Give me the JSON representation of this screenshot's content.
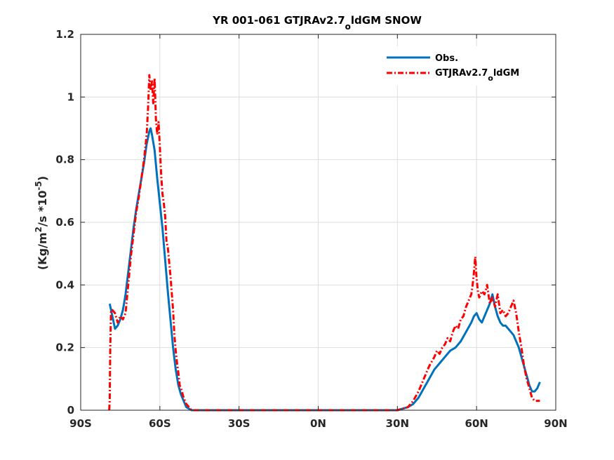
{
  "chart_data": {
    "type": "line",
    "title": "YR 001-061 GTJRAv2.7",
    "title_sub": "o",
    "title_rest": "ldGM SNOW",
    "ylabel_pre": "(Kg/m",
    "ylabel_sup1": "2",
    "ylabel_mid": "/s *10",
    "ylabel_sup2": "-5",
    "ylabel_post": ")",
    "xlim": [
      -90,
      90
    ],
    "ylim": [
      0,
      1.2
    ],
    "xticks": [
      -90,
      -60,
      -30,
      0,
      30,
      60,
      90
    ],
    "xtick_labels": [
      "90S",
      "60S",
      "30S",
      "0N",
      "30N",
      "60N",
      "90N"
    ],
    "yticks": [
      0,
      0.2,
      0.4,
      0.6,
      0.8,
      1.0,
      1.2
    ],
    "ytick_labels": [
      "0",
      "0.2",
      "0.4",
      "0.6",
      "0.8",
      "1",
      "1.2"
    ],
    "grid": true,
    "legend_position": "top-right",
    "series": [
      {
        "name": "Obs.",
        "color": "#0072BD",
        "style": "solid",
        "points": [
          [
            -79,
            0.34
          ],
          [
            -78,
            0.3
          ],
          [
            -77,
            0.26
          ],
          [
            -76,
            0.27
          ],
          [
            -75,
            0.29
          ],
          [
            -74,
            0.32
          ],
          [
            -73,
            0.37
          ],
          [
            -72,
            0.44
          ],
          [
            -71,
            0.51
          ],
          [
            -70,
            0.58
          ],
          [
            -69,
            0.64
          ],
          [
            -68,
            0.69
          ],
          [
            -67,
            0.74
          ],
          [
            -66,
            0.79
          ],
          [
            -65,
            0.85
          ],
          [
            -64,
            0.89
          ],
          [
            -63.5,
            0.9
          ],
          [
            -63,
            0.88
          ],
          [
            -62,
            0.83
          ],
          [
            -61,
            0.74
          ],
          [
            -60,
            0.66
          ],
          [
            -59,
            0.58
          ],
          [
            -58,
            0.48
          ],
          [
            -57,
            0.38
          ],
          [
            -56,
            0.29
          ],
          [
            -55,
            0.2
          ],
          [
            -54,
            0.13
          ],
          [
            -53,
            0.08
          ],
          [
            -52,
            0.05
          ],
          [
            -51,
            0.03
          ],
          [
            -50,
            0.01
          ],
          [
            -49,
            0.005
          ],
          [
            -48,
            0.0
          ],
          [
            -40,
            0.0
          ],
          [
            -20,
            0.0
          ],
          [
            0,
            0.0
          ],
          [
            20,
            0.0
          ],
          [
            30,
            0.0
          ],
          [
            32,
            0.005
          ],
          [
            34,
            0.01
          ],
          [
            36,
            0.02
          ],
          [
            38,
            0.04
          ],
          [
            40,
            0.07
          ],
          [
            42,
            0.1
          ],
          [
            44,
            0.13
          ],
          [
            46,
            0.15
          ],
          [
            48,
            0.17
          ],
          [
            50,
            0.19
          ],
          [
            52,
            0.2
          ],
          [
            54,
            0.22
          ],
          [
            56,
            0.25
          ],
          [
            58,
            0.28
          ],
          [
            59,
            0.3
          ],
          [
            60,
            0.31
          ],
          [
            61,
            0.29
          ],
          [
            62,
            0.28
          ],
          [
            63,
            0.3
          ],
          [
            64,
            0.32
          ],
          [
            65,
            0.34
          ],
          [
            66,
            0.37
          ],
          [
            67,
            0.33
          ],
          [
            68,
            0.3
          ],
          [
            69,
            0.28
          ],
          [
            70,
            0.27
          ],
          [
            71,
            0.27
          ],
          [
            72,
            0.26
          ],
          [
            73,
            0.25
          ],
          [
            74,
            0.24
          ],
          [
            75,
            0.22
          ],
          [
            76,
            0.2
          ],
          [
            77,
            0.17
          ],
          [
            78,
            0.14
          ],
          [
            79,
            0.11
          ],
          [
            80,
            0.08
          ],
          [
            81,
            0.06
          ],
          [
            82,
            0.06
          ],
          [
            83,
            0.07
          ],
          [
            84,
            0.09
          ]
        ]
      },
      {
        "name": "GTJRAv2.7",
        "name_sub": "o",
        "name_rest": "ldGM",
        "color": "#FF0000",
        "style": "dashed",
        "points": [
          [
            -79.2,
            0.0
          ],
          [
            -79,
            0.03
          ],
          [
            -78.8,
            0.2
          ],
          [
            -78.5,
            0.32
          ],
          [
            -78,
            0.32
          ],
          [
            -77,
            0.31
          ],
          [
            -76,
            0.28
          ],
          [
            -75,
            0.3
          ],
          [
            -74,
            0.29
          ],
          [
            -73,
            0.31
          ],
          [
            -72,
            0.4
          ],
          [
            -71,
            0.49
          ],
          [
            -70,
            0.56
          ],
          [
            -69,
            0.63
          ],
          [
            -68,
            0.68
          ],
          [
            -67,
            0.74
          ],
          [
            -66,
            0.8
          ],
          [
            -65,
            0.88
          ],
          [
            -64.5,
            0.96
          ],
          [
            -64,
            1.07
          ],
          [
            -63.5,
            1.02
          ],
          [
            -63,
            1.05
          ],
          [
            -62.5,
            0.98
          ],
          [
            -62,
            1.06
          ],
          [
            -61.5,
            0.93
          ],
          [
            -61,
            0.88
          ],
          [
            -60.5,
            0.92
          ],
          [
            -60,
            0.84
          ],
          [
            -59.5,
            0.75
          ],
          [
            -59,
            0.69
          ],
          [
            -58.5,
            0.66
          ],
          [
            -58,
            0.62
          ],
          [
            -57.5,
            0.54
          ],
          [
            -57,
            0.52
          ],
          [
            -56,
            0.43
          ],
          [
            -55,
            0.32
          ],
          [
            -54.5,
            0.24
          ],
          [
            -54,
            0.19
          ],
          [
            -53.5,
            0.15
          ],
          [
            -53,
            0.12
          ],
          [
            -52.5,
            0.08
          ],
          [
            -52,
            0.07
          ],
          [
            -51,
            0.04
          ],
          [
            -50,
            0.02
          ],
          [
            -49,
            0.01
          ],
          [
            -48,
            0.0
          ],
          [
            -40,
            0.0
          ],
          [
            -20,
            0.0
          ],
          [
            0,
            0.0
          ],
          [
            20,
            0.0
          ],
          [
            30,
            0.0
          ],
          [
            32,
            0.005
          ],
          [
            34,
            0.01
          ],
          [
            36,
            0.03
          ],
          [
            38,
            0.06
          ],
          [
            40,
            0.1
          ],
          [
            42,
            0.14
          ],
          [
            44,
            0.17
          ],
          [
            45,
            0.19
          ],
          [
            46,
            0.18
          ],
          [
            47,
            0.2
          ],
          [
            48,
            0.21
          ],
          [
            49,
            0.23
          ],
          [
            50,
            0.22
          ],
          [
            51,
            0.25
          ],
          [
            52,
            0.27
          ],
          [
            53,
            0.26
          ],
          [
            54,
            0.29
          ],
          [
            55,
            0.3
          ],
          [
            56,
            0.33
          ],
          [
            57,
            0.35
          ],
          [
            58,
            0.37
          ],
          [
            58.5,
            0.4
          ],
          [
            59,
            0.44
          ],
          [
            59.5,
            0.49
          ],
          [
            60,
            0.42
          ],
          [
            60.5,
            0.38
          ],
          [
            61,
            0.36
          ],
          [
            62,
            0.38
          ],
          [
            63,
            0.37
          ],
          [
            64,
            0.4
          ],
          [
            65,
            0.34
          ],
          [
            66,
            0.36
          ],
          [
            67,
            0.33
          ],
          [
            68,
            0.37
          ],
          [
            69,
            0.31
          ],
          [
            70,
            0.32
          ],
          [
            71,
            0.3
          ],
          [
            72,
            0.31
          ],
          [
            73,
            0.33
          ],
          [
            74,
            0.35
          ],
          [
            75,
            0.31
          ],
          [
            76,
            0.25
          ],
          [
            77,
            0.2
          ],
          [
            78,
            0.14
          ],
          [
            79,
            0.1
          ],
          [
            80,
            0.07
          ],
          [
            81,
            0.04
          ],
          [
            82,
            0.03
          ],
          [
            83,
            0.03
          ],
          [
            84,
            0.03
          ]
        ]
      }
    ]
  }
}
